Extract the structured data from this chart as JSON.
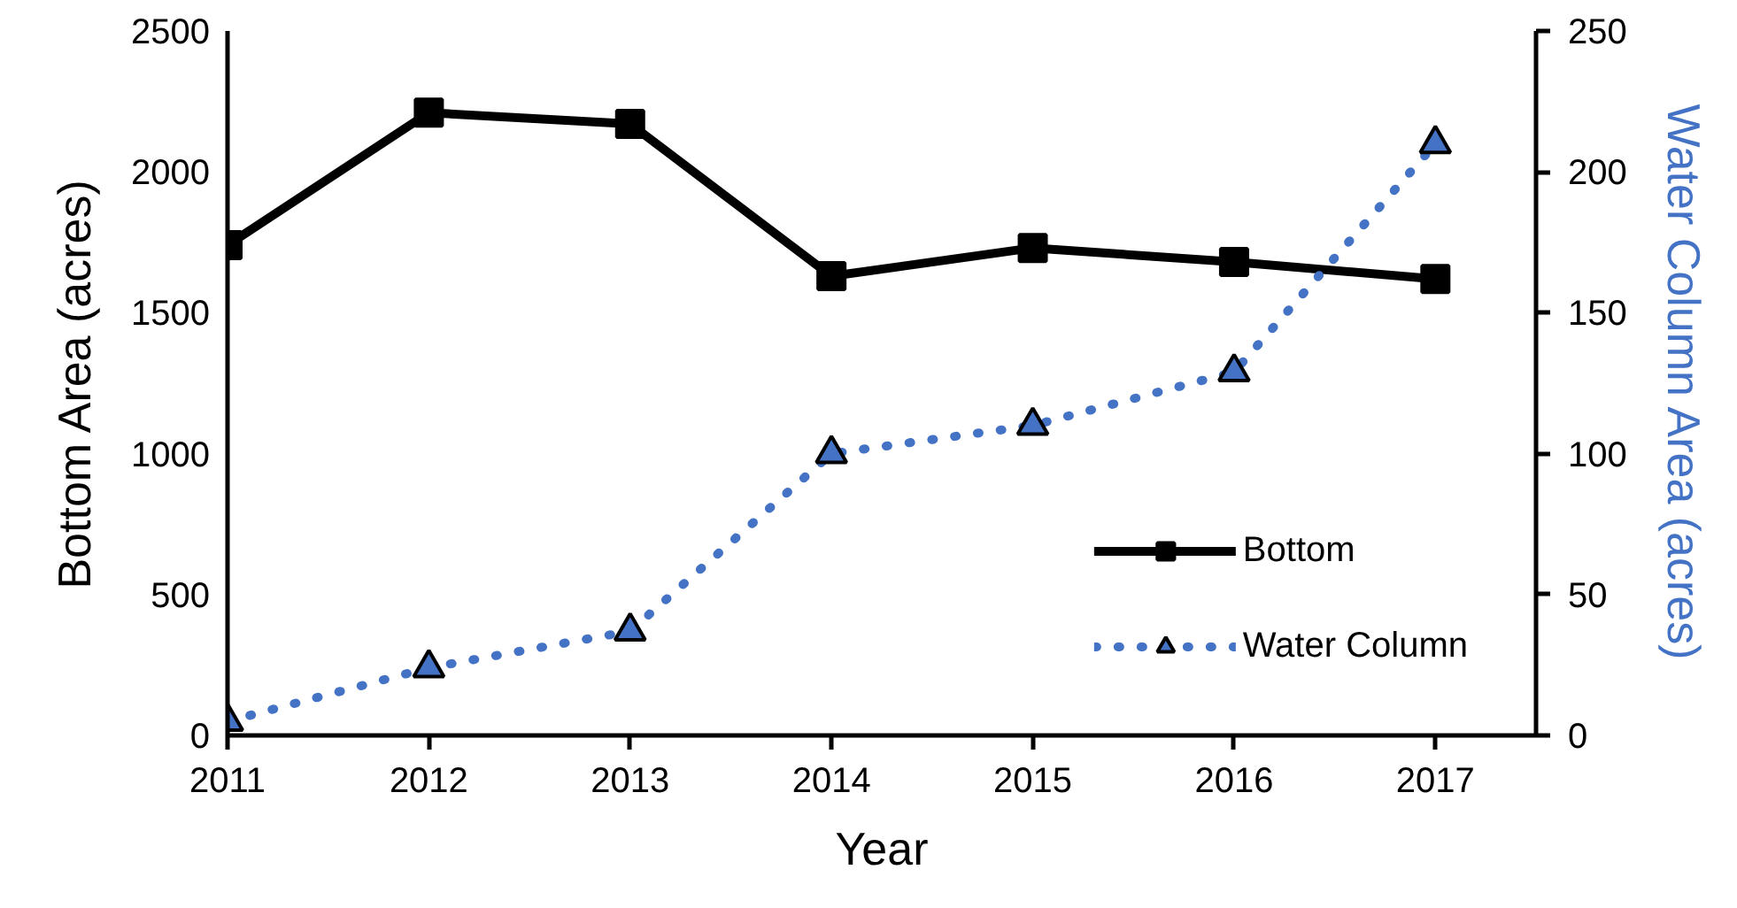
{
  "chart_data": {
    "type": "line",
    "xlabel": "Year",
    "ylabel": "Bottom Area (acres)",
    "y2label": "Water Column Area (acres)",
    "x": [
      2011,
      2012,
      2013,
      2014,
      2015,
      2016,
      2017
    ],
    "xlim": [
      2011,
      2017.5
    ],
    "xticks": [
      2011,
      2012,
      2013,
      2014,
      2015,
      2016,
      2017
    ],
    "ylim": [
      0,
      2500
    ],
    "yticks": [
      0,
      500,
      1000,
      1500,
      2000,
      2500
    ],
    "y2lim": [
      0,
      250
    ],
    "y2ticks": [
      0,
      50,
      100,
      150,
      200,
      250
    ],
    "grid": false,
    "legend": "bottom right",
    "line_style": "solid",
    "series": [
      {
        "name": "Bottom",
        "color": "#000000",
        "marker": "square",
        "values": [
          1740,
          2210,
          2170,
          1630,
          1730,
          1680,
          1620
        ]
      },
      {
        "name": "Water Column",
        "color": "#4472c4",
        "marker": "triangle",
        "line_style": "dotted",
        "axis": "y2",
        "values": [
          5,
          24,
          37,
          100,
          110,
          129,
          210
        ]
      }
    ]
  }
}
